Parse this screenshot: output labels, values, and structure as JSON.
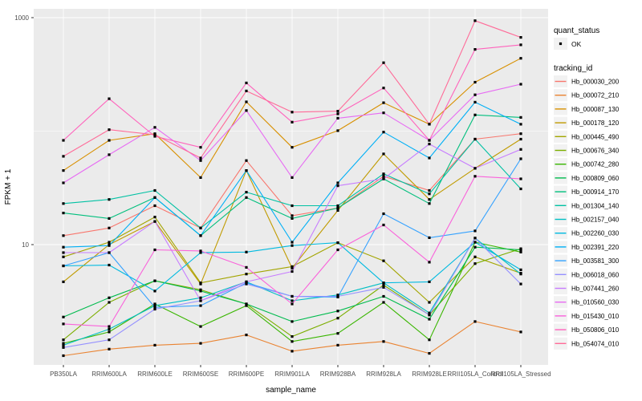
{
  "colors": {
    "page_bg": "#FFFFFF",
    "panel_bg": "#EBEBEB",
    "grid": "#FFFFFF",
    "point": "#000000",
    "axis_text": "#4D4D4D",
    "title_text": "#000000",
    "legend_key_bg": "#F2F2F2",
    "tick_mark": "#333333"
  },
  "chart_data": {
    "type": "line",
    "title": "",
    "xlabel": "sample_name",
    "ylabel": "FPKM + 1",
    "y_scale": "log10",
    "y_tick_labels": [
      "1000",
      "10"
    ],
    "y_ticks": [
      1000,
      10
    ],
    "y_minor_ticks": [
      100
    ],
    "ylim": [
      0.87,
      1200
    ],
    "grid": true,
    "legend_position": "right",
    "point_shape": "small-black-square",
    "legend": {
      "quant_status_title": "quant_status",
      "quant_status_items": [
        "OK"
      ],
      "tracking_id_title": "tracking_id"
    },
    "categories": [
      "PB350LA",
      "RRIM600LA",
      "RRIM600LE",
      "RRIM600SE",
      "RRIM600PE",
      "RRIM901LA",
      "RRIM928BA",
      "RRIM928LA",
      "RRIM928LE",
      "RRII105LA_Control",
      "RRII105LA_Stressed"
    ],
    "series": [
      {
        "name": "Hb_000030_200",
        "color": "#F8766D",
        "values": [
          12,
          14,
          22,
          14,
          55,
          18,
          21,
          40,
          30,
          85,
          95
        ]
      },
      {
        "name": "Hb_000072_210",
        "color": "#EA8331",
        "values": [
          1.05,
          1.2,
          1.3,
          1.35,
          1.6,
          1.15,
          1.3,
          1.4,
          1.1,
          2.1,
          1.7
        ]
      },
      {
        "name": "Hb_000087_130",
        "color": "#D89000",
        "values": [
          45,
          83,
          95,
          39,
          181,
          72,
          101,
          178,
          115,
          270,
          438
        ]
      },
      {
        "name": "Hb_000178_120",
        "color": "#C09B00",
        "values": [
          4.7,
          10,
          16,
          4.5,
          45,
          6.2,
          20,
          63,
          25,
          47,
          85
        ]
      },
      {
        "name": "Hb_000445_490",
        "color": "#A3A500",
        "values": [
          7.8,
          10.5,
          17.5,
          4.6,
          5.5,
          6.4,
          10.4,
          7.2,
          3.1,
          7.8,
          5.6
        ]
      },
      {
        "name": "Hb_000676_340",
        "color": "#7CAE00",
        "values": [
          1.45,
          3.1,
          4.8,
          4.0,
          3.0,
          1.55,
          2.25,
          4.4,
          2.4,
          6.8,
          9.2
        ]
      },
      {
        "name": "Hb_000742_280",
        "color": "#39B600",
        "values": [
          1.35,
          1.7,
          3.0,
          1.9,
          2.9,
          1.4,
          1.65,
          3.1,
          1.45,
          10.5,
          8.6
        ]
      },
      {
        "name": "Hb_000809_060",
        "color": "#00BB4E",
        "values": [
          2.3,
          3.4,
          4.8,
          3.9,
          3.0,
          2.1,
          2.6,
          3.5,
          2.2,
          9.5,
          9.0
        ]
      },
      {
        "name": "Hb_000914_170",
        "color": "#00BF7D",
        "values": [
          19,
          17,
          26,
          12,
          26,
          17,
          21,
          38,
          23,
          139,
          132
        ]
      },
      {
        "name": "Hb_001304_140",
        "color": "#00C1A3",
        "values": [
          23,
          25,
          30,
          14,
          29,
          22,
          22,
          42,
          28,
          85,
          31
        ]
      },
      {
        "name": "Hb_002157_040",
        "color": "#00BFC4",
        "values": [
          1.3,
          1.8,
          2.9,
          3.4,
          4.7,
          3.2,
          3.6,
          4.6,
          2.5,
          11.4,
          5.5
        ]
      },
      {
        "name": "Hb_002260_030",
        "color": "#00BAE0",
        "values": [
          6.5,
          6.6,
          3.9,
          8.5,
          8.6,
          9.8,
          10.4,
          4.6,
          4.7,
          10.5,
          6.0
        ]
      },
      {
        "name": "Hb_002391_220",
        "color": "#00B0F6",
        "values": [
          9.5,
          9.8,
          26,
          12,
          45,
          10.5,
          35,
          98,
          58,
          180,
          115
        ]
      },
      {
        "name": "Hb_003581_300",
        "color": "#35A2FF",
        "values": [
          6.5,
          8.5,
          2.8,
          2.9,
          4.6,
          3.5,
          3.45,
          18.7,
          11.5,
          13.2,
          57
        ]
      },
      {
        "name": "Hb_006018_060",
        "color": "#9590FF",
        "values": [
          1.24,
          1.45,
          2.7,
          3.2,
          4.5,
          3.5,
          3.5,
          4.2,
          2.4,
          11.4,
          4.5
        ]
      },
      {
        "name": "Hb_007441_260",
        "color": "#C77CFF",
        "values": [
          8.5,
          8.5,
          16,
          3.2,
          4.7,
          5.8,
          33,
          38,
          77,
          47,
          69
        ]
      },
      {
        "name": "Hb_010560_030",
        "color": "#E76BF3",
        "values": [
          35,
          62,
          108,
          55,
          152,
          39,
          130,
          145,
          83,
          209,
          259
        ]
      },
      {
        "name": "Hb_015430_010",
        "color": "#FA62DB",
        "values": [
          2.0,
          1.9,
          9.0,
          8.8,
          6.3,
          3.0,
          9.0,
          14.9,
          7.0,
          40,
          38
        ]
      },
      {
        "name": "Hb_050806_010",
        "color": "#FF62BC",
        "values": [
          83,
          193,
          90,
          72,
          266,
          120,
          142,
          240,
          83,
          525,
          576
        ]
      },
      {
        "name": "Hb_054074_010",
        "color": "#FF6A98",
        "values": [
          60,
          103,
          93,
          58,
          226,
          147,
          150,
          401,
          115,
          940,
          670
        ]
      }
    ]
  }
}
